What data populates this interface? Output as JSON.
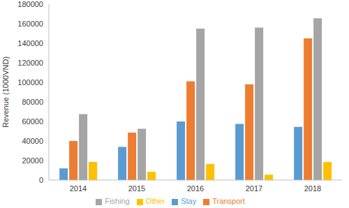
{
  "chart_data": {
    "type": "bar",
    "y_label": "Revenue (1000VND)",
    "categories": [
      "2014",
      "2015",
      "2016",
      "2017",
      "2018"
    ],
    "series": [
      {
        "name": "Stay",
        "color": "#5b9bd5",
        "values": [
          12000,
          34000,
          60000,
          57500,
          54500
        ]
      },
      {
        "name": "Transport",
        "color": "#ed7d31",
        "values": [
          40000,
          48500,
          101000,
          98000,
          145000
        ]
      },
      {
        "name": "Fishing",
        "color": "#a5a5a5",
        "values": [
          67500,
          52500,
          155000,
          156000,
          165500
        ]
      },
      {
        "name": "Other",
        "color": "#ffc000",
        "values": [
          18500,
          8500,
          16500,
          5500,
          18500
        ]
      }
    ],
    "ylim": [
      0,
      180000
    ],
    "yticks": [
      0,
      20000,
      40000,
      60000,
      80000,
      100000,
      120000,
      140000,
      160000,
      180000
    ],
    "grid": false,
    "legend": "bottom"
  }
}
